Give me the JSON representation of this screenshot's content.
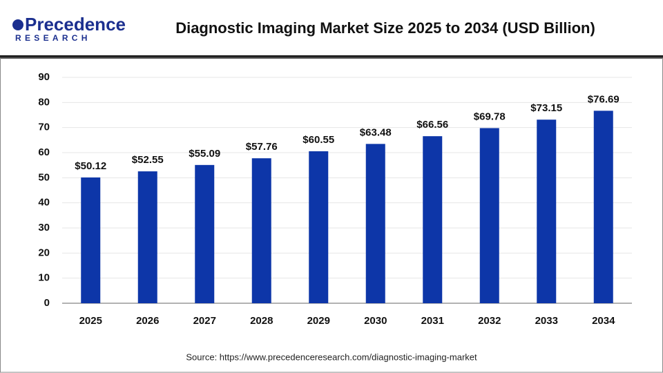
{
  "logo": {
    "name": "Precedence",
    "tagline": "RESEARCH"
  },
  "chart_data": {
    "type": "bar",
    "title": "Diagnostic Imaging Market Size 2025 to 2034 (USD Billion)",
    "categories": [
      "2025",
      "2026",
      "2027",
      "2028",
      "2029",
      "2030",
      "2031",
      "2032",
      "2033",
      "2034"
    ],
    "values": [
      50.12,
      52.55,
      55.09,
      57.76,
      60.55,
      63.48,
      66.56,
      69.78,
      73.15,
      76.69
    ],
    "value_labels": [
      "$50.12",
      "$52.55",
      "$55.09",
      "$57.76",
      "$60.55",
      "$63.48",
      "$66.56",
      "$69.78",
      "$73.15",
      "$76.69"
    ],
    "color": "#0d36a8",
    "ylim": [
      0,
      90
    ],
    "yticks": [
      0,
      10,
      20,
      30,
      40,
      50,
      60,
      70,
      80,
      90
    ],
    "grid": true,
    "source": "Source: https://www.precedenceresearch.com/diagnostic-imaging-market"
  }
}
